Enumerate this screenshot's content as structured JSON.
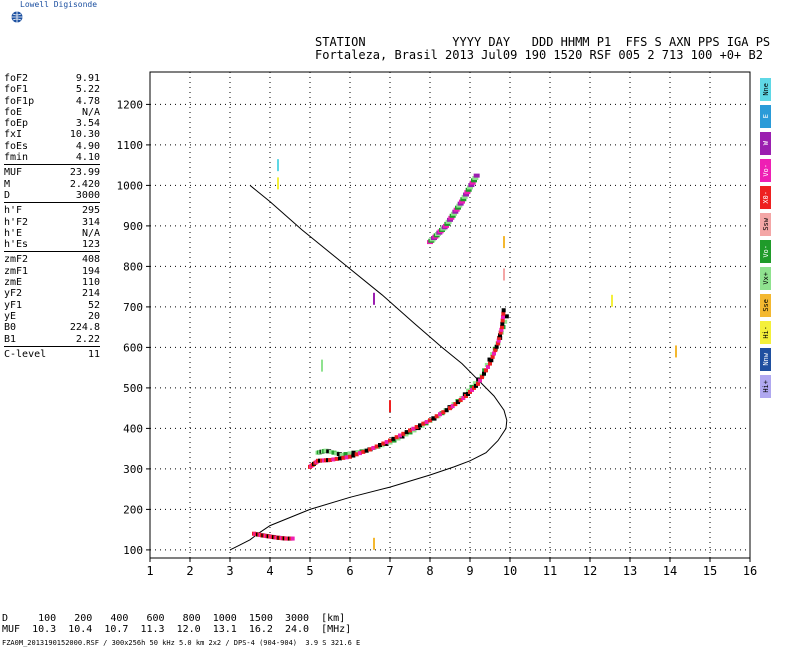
{
  "logo": {
    "text": "Lowell Digisonde",
    "icon": "globe-icon"
  },
  "header": {
    "line1": "STATION            YYYY DAY   DDD HHMM P1  FFS S AXN PPS IGA PS",
    "line2": "Fortaleza, Brasil 2013 Jul09 190 1520 RSF 005 2 713 100 +0+ B2"
  },
  "params": [
    [
      [
        "foF2",
        "9.91"
      ],
      [
        "foF1",
        "5.22"
      ],
      [
        "foF1p",
        "4.78"
      ],
      [
        "foE",
        "N/A"
      ],
      [
        "foEp",
        "3.54"
      ],
      [
        "fxI",
        "10.30"
      ],
      [
        "foEs",
        "4.90"
      ],
      [
        "fmin",
        "4.10"
      ]
    ],
    [
      [
        "MUF",
        "23.99"
      ],
      [
        "M",
        "2.420"
      ],
      [
        "D",
        "3000"
      ]
    ],
    [
      [
        "h'F",
        "295"
      ],
      [
        "h'F2",
        "314"
      ],
      [
        "h'E",
        "N/A"
      ],
      [
        "h'Es",
        "123"
      ]
    ],
    [
      [
        "zmF2",
        "408"
      ],
      [
        "zmF1",
        "194"
      ],
      [
        "zmE",
        "110"
      ],
      [
        "yF2",
        "214"
      ],
      [
        "yF1",
        "52"
      ],
      [
        "yE",
        "20"
      ],
      [
        "B0",
        "224.8"
      ],
      [
        "B1",
        "2.22"
      ]
    ],
    [
      [
        "C-level",
        "11"
      ]
    ]
  ],
  "legend": [
    {
      "label": "Nne",
      "color": "#5fd8e6"
    },
    {
      "label": "E",
      "color": "#2a9bd8"
    },
    {
      "label": "W",
      "color": "#9b1fb0"
    },
    {
      "label": "Vo-",
      "color": "#ee1fb4"
    },
    {
      "label": "X0-",
      "color": "#ee2020"
    },
    {
      "label": "Ssw",
      "color": "#f4a6a6"
    },
    {
      "label": "Vo-",
      "color": "#1f9b2a"
    },
    {
      "label": "Vx+",
      "color": "#8fe28f"
    },
    {
      "label": "Sse",
      "color": "#f4b830"
    },
    {
      "label": "Hi-",
      "color": "#f4f03a"
    },
    {
      "label": "Nnw",
      "color": "#1f4fa0"
    },
    {
      "label": "Hi+",
      "color": "#b0a8f0"
    }
  ],
  "bottom": {
    "line1": "D     100   200   400   600   800  1000  1500  3000  [km]",
    "line2": "MUF  10.3  10.4  10.7  11.3  12.0  13.1  16.2  24.0  [MHz]"
  },
  "footer": "FZA0M_2013190152000.RSF / 300x256h 50 kHz 5.0 km 2x2 / DPS-4 (904-904)  3.9 S 321.6 E",
  "chart_data": {
    "type": "scatter",
    "xlim": [
      1,
      16
    ],
    "ylim": [
      80,
      1280
    ],
    "xticks": [
      1,
      2,
      3,
      4,
      5,
      6,
      7,
      8,
      9,
      10,
      11,
      12,
      13,
      14,
      15,
      16
    ],
    "yticks": [
      100,
      200,
      300,
      400,
      500,
      600,
      700,
      800,
      900,
      1000,
      1100,
      1200
    ],
    "grid": true,
    "profile": {
      "x": [
        3.0,
        3.2,
        3.5,
        3.7,
        4.0,
        4.5,
        5.0,
        6.0,
        7.0,
        8.0,
        8.6,
        9.0,
        9.4,
        9.7,
        9.9,
        9.92,
        9.85,
        9.6,
        9.2,
        8.8,
        8.3,
        7.6,
        6.8,
        5.8,
        4.8,
        4.0,
        3.5
      ],
      "y": [
        100,
        110,
        125,
        140,
        160,
        180,
        200,
        230,
        255,
        285,
        305,
        320,
        340,
        370,
        400,
        420,
        445,
        480,
        520,
        560,
        600,
        660,
        730,
        810,
        890,
        960,
        1000
      ]
    },
    "ordinary_trace": {
      "x": [
        3.6,
        3.8,
        4.0,
        4.2,
        4.4,
        4.6,
        5.0,
        5.2,
        5.5,
        6.0,
        6.5,
        7.0,
        7.5,
        8.0,
        8.5,
        8.9,
        9.2,
        9.5,
        9.7,
        9.8,
        9.85
      ],
      "y": [
        140,
        136,
        133,
        130,
        128,
        128,
        305,
        320,
        322,
        330,
        348,
        370,
        395,
        420,
        450,
        480,
        510,
        560,
        610,
        650,
        700
      ]
    },
    "extraordinary_trace": {
      "x": [
        5.2,
        5.4,
        5.8,
        6.4,
        7.0,
        7.6,
        8.2,
        8.8,
        9.3,
        9.7,
        9.95
      ],
      "y": [
        340,
        345,
        335,
        345,
        365,
        395,
        430,
        475,
        530,
        610,
        690
      ]
    },
    "spread_f": {
      "x": [
        8.0,
        8.2,
        8.4,
        8.6,
        8.8,
        9.0,
        9.2
      ],
      "y": [
        860,
        880,
        900,
        930,
        960,
        995,
        1030
      ]
    },
    "sporadic": {
      "x": [
        4.2,
        4.2,
        5.3,
        6.6,
        6.6,
        7.0,
        9.85,
        9.85,
        12.55,
        14.15
      ],
      "y": [
        1050,
        1005,
        555,
        720,
        115,
        455,
        860,
        780,
        715,
        590
      ]
    }
  }
}
